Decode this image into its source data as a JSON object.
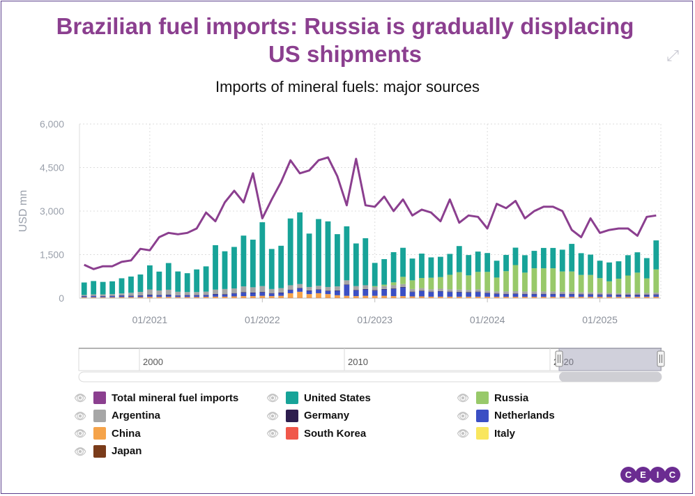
{
  "title": "Brazilian fuel imports: Russia is gradually displacing US shipments",
  "subtitle": "Imports of mineral fuels: major sources",
  "navigator_labels": [
    "2000",
    "2010",
    "2020"
  ],
  "chart_data": {
    "type": "bar",
    "ylabel": "USD mn",
    "ylim": [
      0,
      6000
    ],
    "yticks": [
      "6,000",
      "4,500",
      "3,000",
      "1,500",
      "0"
    ],
    "x_tick_labels": [
      "01/2021",
      "01/2022",
      "01/2023",
      "01/2024",
      "01/2025"
    ],
    "x": [
      "06/2020",
      "07/2020",
      "08/2020",
      "09/2020",
      "10/2020",
      "11/2020",
      "12/2020",
      "01/2021",
      "02/2021",
      "03/2021",
      "04/2021",
      "05/2021",
      "06/2021",
      "07/2021",
      "08/2021",
      "09/2021",
      "10/2021",
      "11/2021",
      "12/2021",
      "01/2022",
      "02/2022",
      "03/2022",
      "04/2022",
      "05/2022",
      "06/2022",
      "07/2022",
      "08/2022",
      "09/2022",
      "10/2022",
      "11/2022",
      "12/2022",
      "01/2023",
      "02/2023",
      "03/2023",
      "04/2023",
      "05/2023",
      "06/2023",
      "07/2023",
      "08/2023",
      "09/2023",
      "10/2023",
      "11/2023",
      "12/2023",
      "01/2024",
      "02/2024",
      "03/2024",
      "04/2024",
      "05/2024",
      "06/2024",
      "07/2024",
      "08/2024",
      "09/2024",
      "10/2024",
      "11/2024",
      "12/2024",
      "01/2025",
      "02/2025",
      "03/2025",
      "04/2025",
      "05/2025",
      "06/2025",
      "07/2025"
    ],
    "series": [
      {
        "name": "United States",
        "color": "#17a398",
        "values": [
          430,
          460,
          430,
          440,
          520,
          560,
          600,
          830,
          650,
          920,
          700,
          650,
          780,
          870,
          1530,
          1300,
          1430,
          1750,
          1640,
          2200,
          1380,
          1460,
          2300,
          2470,
          1840,
          2300,
          2260,
          1800,
          1860,
          1470,
          1620,
          800,
          880,
          1040,
          1000,
          750,
          840,
          700,
          700,
          720,
          900,
          700,
          700,
          650,
          580,
          560,
          600,
          600,
          600,
          700,
          700,
          750,
          950,
          750,
          700,
          600,
          650,
          600,
          700,
          700,
          700,
          1000
        ]
      },
      {
        "name": "Russia",
        "color": "#98c96a",
        "values": [
          0,
          0,
          0,
          0,
          0,
          0,
          0,
          0,
          0,
          0,
          0,
          0,
          0,
          0,
          0,
          0,
          0,
          0,
          0,
          0,
          0,
          0,
          0,
          0,
          0,
          0,
          0,
          0,
          0,
          0,
          0,
          30,
          50,
          100,
          250,
          300,
          350,
          400,
          400,
          500,
          600,
          500,
          600,
          650,
          480,
          700,
          900,
          650,
          800,
          800,
          800,
          700,
          700,
          600,
          600,
          500,
          400,
          500,
          600,
          700,
          500,
          800
        ]
      },
      {
        "name": "Argentina",
        "color": "#a6a6a6",
        "values": [
          40,
          50,
          60,
          60,
          70,
          100,
          120,
          180,
          150,
          170,
          120,
          100,
          100,
          110,
          150,
          180,
          160,
          200,
          180,
          200,
          140,
          150,
          150,
          130,
          120,
          120,
          130,
          140,
          140,
          130,
          130,
          110,
          100,
          110,
          100,
          90,
          90,
          80,
          80,
          80,
          80,
          80,
          80,
          70,
          70,
          80,
          80,
          80,
          80,
          80,
          80,
          70,
          70,
          60,
          60,
          60,
          50,
          50,
          60,
          60,
          60,
          60
        ]
      },
      {
        "name": "Germany",
        "color": "#2d1d4e",
        "values": [
          10,
          10,
          10,
          10,
          10,
          10,
          10,
          15,
          10,
          15,
          10,
          10,
          10,
          10,
          15,
          15,
          15,
          15,
          15,
          15,
          15,
          15,
          15,
          15,
          15,
          15,
          15,
          15,
          15,
          15,
          15,
          15,
          15,
          15,
          15,
          15,
          15,
          15,
          15,
          15,
          15,
          15,
          15,
          15,
          15,
          15,
          15,
          15,
          15,
          15,
          15,
          15,
          15,
          15,
          15,
          15,
          15,
          15,
          15,
          15,
          15,
          15
        ]
      },
      {
        "name": "Netherlands",
        "color": "#3b4fc4",
        "values": [
          30,
          40,
          30,
          40,
          50,
          40,
          50,
          60,
          60,
          60,
          50,
          60,
          60,
          60,
          80,
          70,
          100,
          120,
          110,
          120,
          90,
          100,
          110,
          120,
          110,
          120,
          100,
          150,
          380,
          200,
          220,
          180,
          220,
          250,
          300,
          150,
          180,
          160,
          180,
          160,
          150,
          140,
          160,
          120,
          100,
          90,
          100,
          90,
          90,
          90,
          90,
          90,
          90,
          80,
          80,
          70,
          70,
          60,
          60,
          60,
          60,
          70
        ]
      },
      {
        "name": "China",
        "color": "#f5a34a",
        "values": [
          15,
          15,
          15,
          15,
          20,
          20,
          20,
          25,
          25,
          25,
          20,
          20,
          20,
          25,
          30,
          30,
          40,
          50,
          50,
          60,
          50,
          60,
          150,
          200,
          120,
          150,
          120,
          80,
          60,
          50,
          60,
          60,
          60,
          50,
          50,
          40,
          40,
          30,
          30,
          30,
          30,
          30,
          30,
          30,
          25,
          25,
          25,
          25,
          25,
          25,
          25,
          25,
          25,
          25,
          25,
          25,
          25,
          25,
          25,
          25,
          25,
          25
        ]
      },
      {
        "name": "South Korea",
        "color": "#f0574a",
        "values": [
          5,
          5,
          5,
          5,
          5,
          5,
          5,
          10,
          10,
          10,
          10,
          10,
          10,
          10,
          10,
          10,
          10,
          10,
          10,
          10,
          10,
          10,
          10,
          10,
          10,
          10,
          10,
          10,
          10,
          10,
          10,
          10,
          10,
          10,
          10,
          10,
          10,
          10,
          10,
          10,
          10,
          10,
          10,
          10,
          10,
          10,
          10,
          10,
          10,
          10,
          10,
          10,
          10,
          10,
          10,
          10,
          10,
          10,
          10,
          10,
          10,
          10
        ]
      },
      {
        "name": "Italy",
        "color": "#f9e65e",
        "values": [
          5,
          5,
          5,
          5,
          5,
          5,
          5,
          5,
          5,
          5,
          5,
          5,
          5,
          5,
          5,
          5,
          5,
          5,
          5,
          5,
          5,
          5,
          5,
          5,
          5,
          5,
          5,
          5,
          5,
          5,
          5,
          5,
          5,
          5,
          5,
          5,
          5,
          5,
          5,
          5,
          5,
          5,
          5,
          5,
          5,
          5,
          5,
          5,
          5,
          5,
          5,
          5,
          5,
          5,
          5,
          5,
          5,
          5,
          5,
          5,
          5,
          5
        ]
      },
      {
        "name": "Japan",
        "color": "#7a3b1a",
        "values": [
          5,
          5,
          5,
          5,
          5,
          5,
          5,
          5,
          5,
          5,
          5,
          5,
          5,
          5,
          5,
          5,
          5,
          5,
          5,
          5,
          5,
          5,
          5,
          5,
          5,
          5,
          5,
          5,
          5,
          5,
          5,
          5,
          5,
          5,
          5,
          5,
          5,
          5,
          5,
          5,
          5,
          5,
          5,
          5,
          5,
          5,
          5,
          5,
          5,
          5,
          5,
          5,
          5,
          5,
          5,
          5,
          5,
          5,
          5,
          5,
          5,
          5
        ]
      }
    ],
    "total": {
      "name": "Total mineral fuel imports",
      "color": "#8b3f8f",
      "values": [
        1150,
        1000,
        1100,
        1100,
        1250,
        1300,
        1700,
        1650,
        2100,
        2250,
        2200,
        2250,
        2400,
        2950,
        2650,
        3300,
        3700,
        3300,
        4300,
        2750,
        3400,
        4000,
        4750,
        4300,
        4400,
        4750,
        4850,
        4200,
        3200,
        4800,
        3200,
        3150,
        3500,
        3000,
        3400,
        2850,
        3050,
        2950,
        2650,
        3400,
        2600,
        2850,
        2800,
        2400,
        3250,
        3100,
        3350,
        2750,
        3000,
        3150,
        3150,
        3000,
        2350,
        2100,
        2750,
        2250,
        2350,
        2400,
        2400,
        2150,
        2800,
        2850
      ]
    }
  },
  "legend": [
    {
      "label": "Total mineral fuel imports",
      "color": "#8b3f8f"
    },
    {
      "label": "United States",
      "color": "#17a398"
    },
    {
      "label": "Russia",
      "color": "#98c96a"
    },
    {
      "label": "Argentina",
      "color": "#a6a6a6"
    },
    {
      "label": "Germany",
      "color": "#2d1d4e"
    },
    {
      "label": "Netherlands",
      "color": "#3b4fc4"
    },
    {
      "label": "China",
      "color": "#f5a34a"
    },
    {
      "label": "South Korea",
      "color": "#f0574a"
    },
    {
      "label": "Italy",
      "color": "#f9e65e"
    },
    {
      "label": "Japan",
      "color": "#7a3b1a"
    }
  ],
  "brand": [
    "C",
    "E",
    "I",
    "C"
  ]
}
